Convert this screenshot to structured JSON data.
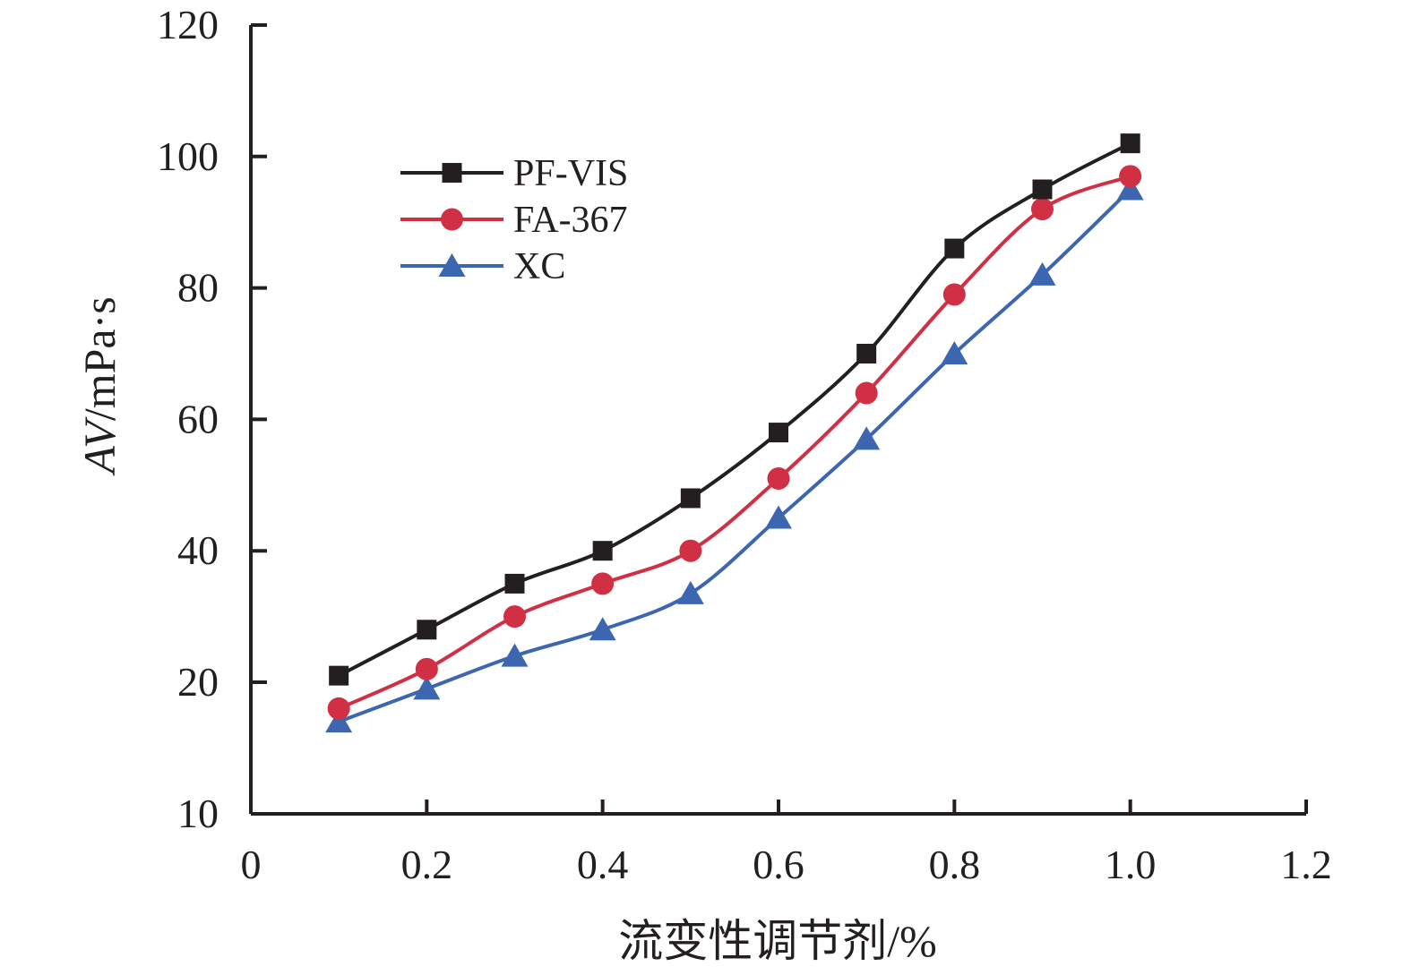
{
  "chart_data": {
    "type": "line",
    "xlabel": "流变性调节剂/%",
    "ylabel": {
      "italic_part": "AV",
      "rest": "/mPa·s"
    },
    "xlim": [
      0,
      1.2
    ],
    "ylim": [
      10,
      120
    ],
    "x_ticks": [
      "0",
      "0.2",
      "0.4",
      "0.6",
      "0.8",
      "1.0",
      "1.2"
    ],
    "y_ticks": [
      "10",
      "20",
      "40",
      "60",
      "80",
      "100",
      "120"
    ],
    "grid": false,
    "legend_position": "upper-left",
    "x": [
      0.1,
      0.2,
      0.3,
      0.4,
      0.5,
      0.6,
      0.7,
      0.8,
      0.9,
      1.0
    ],
    "series": [
      {
        "name": "PF-VIS",
        "marker": "square",
        "color": "#231f20",
        "values": [
          21,
          28,
          35,
          40,
          48,
          58,
          70,
          86,
          95,
          102
        ]
      },
      {
        "name": "FA-367",
        "marker": "circle",
        "color": "#d12f44",
        "values": [
          18,
          22,
          30,
          35,
          40,
          51,
          64,
          79,
          92,
          97
        ]
      },
      {
        "name": "XC",
        "marker": "triangle",
        "color": "#3c66b0",
        "values": [
          17,
          19.5,
          24,
          28,
          33.5,
          45,
          57,
          70,
          82,
          95
        ]
      }
    ]
  }
}
